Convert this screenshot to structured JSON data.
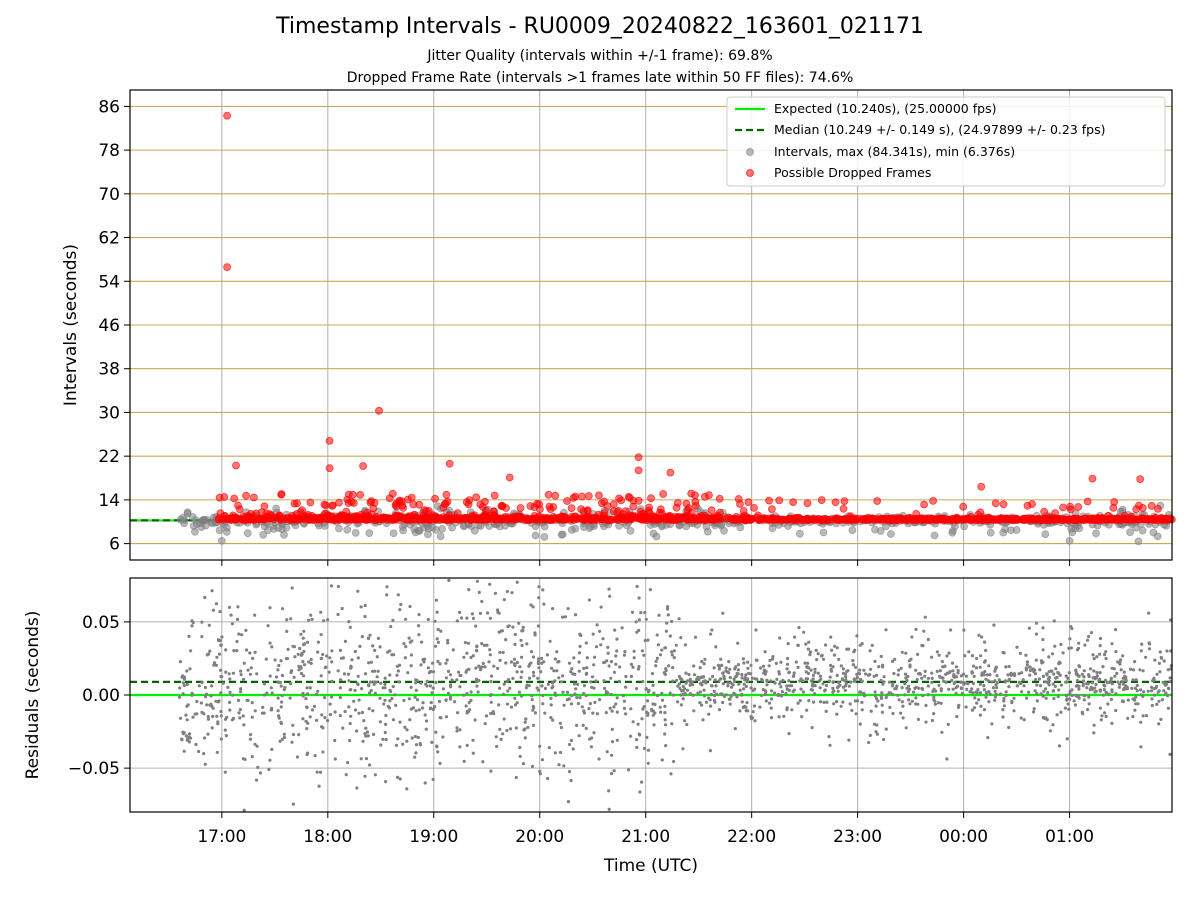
{
  "title": "Timestamp Intervals - RU0009_20240822_163601_021171",
  "subtitle_lines": [
    "Jitter Quality (intervals within +/-1 frame): 69.8%",
    "Dropped Frame Rate (intervals >1 frames late within 50 FF files): 74.6%"
  ],
  "colors": {
    "expected": "#00ee00",
    "median": "#006400",
    "intervals": "#808080",
    "dropped": "#ff0000",
    "hgrid_top": "#c8aa50",
    "grid": "#b0b0b0"
  },
  "chart_data": [
    {
      "type": "scatter",
      "panel": "intervals",
      "ylabel": "Intervals (seconds)",
      "xlabel": "",
      "x_range": [
        "16:08",
        "01:58"
      ],
      "ylim": [
        3,
        89
      ],
      "x_ticks": [
        "17:00",
        "18:00",
        "19:00",
        "20:00",
        "21:00",
        "22:00",
        "23:00",
        "00:00",
        "01:00"
      ],
      "y_ticks": [
        6,
        14,
        22,
        30,
        38,
        46,
        54,
        62,
        70,
        78,
        86
      ],
      "grid": true,
      "legend_position": "top-right",
      "legend": [
        "Expected (10.240s), (25.00000 fps)",
        "Median (10.249 +/- 0.149 s), (24.97899 +/- 0.23 fps)",
        "Intervals, max (84.341s), min (6.376s)",
        "Possible Dropped Frames"
      ],
      "series": [
        {
          "name": "Expected (10.240s), (25.00000 fps)",
          "kind": "hline",
          "y": 10.24
        },
        {
          "name": "Median (10.249 +/- 0.149 s), (24.97899 +/- 0.23 fps)",
          "kind": "hline-dashed",
          "y": 10.249
        },
        {
          "name": "Intervals, max (84.341s), min (6.376s)",
          "kind": "points",
          "baseline": 10.24,
          "x_start": "16:36",
          "x_end": "01:58",
          "max": 84.341,
          "min": 6.376
        },
        {
          "name": "Possible Dropped Frames",
          "kind": "points",
          "highlights": [
            {
              "x": "17:03",
              "y": 84.3
            },
            {
              "x": "17:03",
              "y": 56.6
            },
            {
              "x": "18:01",
              "y": 24.8
            },
            {
              "x": "18:01",
              "y": 19.8
            },
            {
              "x": "18:20",
              "y": 20.2
            },
            {
              "x": "18:29",
              "y": 30.3
            },
            {
              "x": "19:09",
              "y": 20.6
            },
            {
              "x": "20:56",
              "y": 21.8
            },
            {
              "x": "20:56",
              "y": 19.4
            },
            {
              "x": "21:14",
              "y": 19.0
            },
            {
              "x": "19:43",
              "y": 18.1
            },
            {
              "x": "17:08",
              "y": 20.3
            },
            {
              "x": "00:10",
              "y": 16.4
            },
            {
              "x": "01:13",
              "y": 17.9
            },
            {
              "x": "01:40",
              "y": 17.8
            }
          ]
        }
      ]
    },
    {
      "type": "scatter",
      "panel": "residuals",
      "ylabel": "Residuals (seconds)",
      "xlabel": "Time (UTC)",
      "x_range": [
        "16:08",
        "01:58"
      ],
      "ylim": [
        -0.08,
        0.08
      ],
      "x_ticks": [
        "17:00",
        "18:00",
        "19:00",
        "20:00",
        "21:00",
        "22:00",
        "23:00",
        "00:00",
        "01:00"
      ],
      "y_ticks": [
        "−0.05",
        "0.00",
        "0.05"
      ],
      "y_tick_values": [
        -0.05,
        0.0,
        0.05
      ],
      "grid": true,
      "series": [
        {
          "name": "Expected",
          "kind": "hline",
          "y": 0.0
        },
        {
          "name": "Median",
          "kind": "hline-dashed",
          "y": 0.009
        },
        {
          "name": "Residuals",
          "kind": "points",
          "x_start": "16:36",
          "x_end": "01:58"
        }
      ]
    }
  ]
}
